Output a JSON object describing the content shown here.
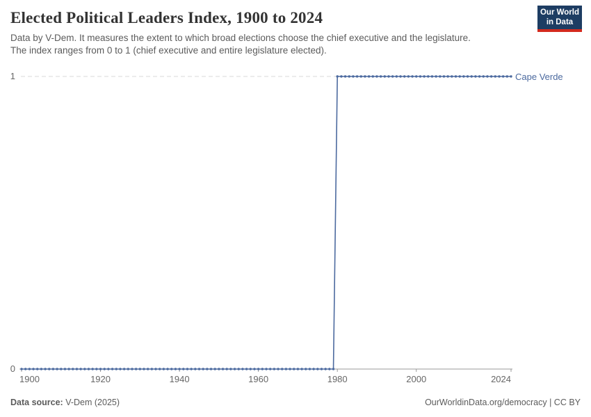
{
  "header": {
    "title": "Elected Political Leaders Index, 1900 to 2024",
    "subtitle_line1": "Data by V-Dem. It measures the extent to which broad elections choose the chief executive and the legislature.",
    "subtitle_line2": "The index ranges from 0 to 1 (chief executive and entire legislature elected).",
    "logo": {
      "line1": "Our World",
      "line2": "in Data",
      "bg_color": "#1d3d63",
      "accent_color": "#d32a1e"
    }
  },
  "chart_data": {
    "type": "line",
    "title": "Elected Political Leaders Index, 1900 to 2024",
    "xlabel": "",
    "ylabel": "",
    "xlim": [
      1900,
      2024
    ],
    "ylim": [
      0,
      1
    ],
    "x_ticks": [
      1900,
      1920,
      1940,
      1960,
      1980,
      2000,
      2024
    ],
    "y_ticks": [
      0,
      1
    ],
    "grid": "horizontal dashed gridline at y=1, solid gray x-axis at y=0",
    "legend_position": "label at right end of line",
    "point_markers_every_year": true,
    "series": [
      {
        "name": "Cape Verde",
        "color": "#4c6a9f",
        "segments": [
          {
            "from_year": 1900,
            "to_year": 1979,
            "value": 0
          },
          {
            "from_year": 1980,
            "to_year": 2024,
            "value": 1
          }
        ]
      }
    ]
  },
  "footer": {
    "data_source_label": "Data source:",
    "data_source_value": "V-Dem (2025)",
    "link": "OurWorldinData.org/democracy",
    "license_suffix": " | CC BY"
  },
  "colors": {
    "series": "#4c6a9f",
    "grid": "#dadada",
    "axis": "#989898",
    "tick_text": "#666666",
    "title_text": "#333333",
    "subtitle_text": "#5b5b5b"
  }
}
